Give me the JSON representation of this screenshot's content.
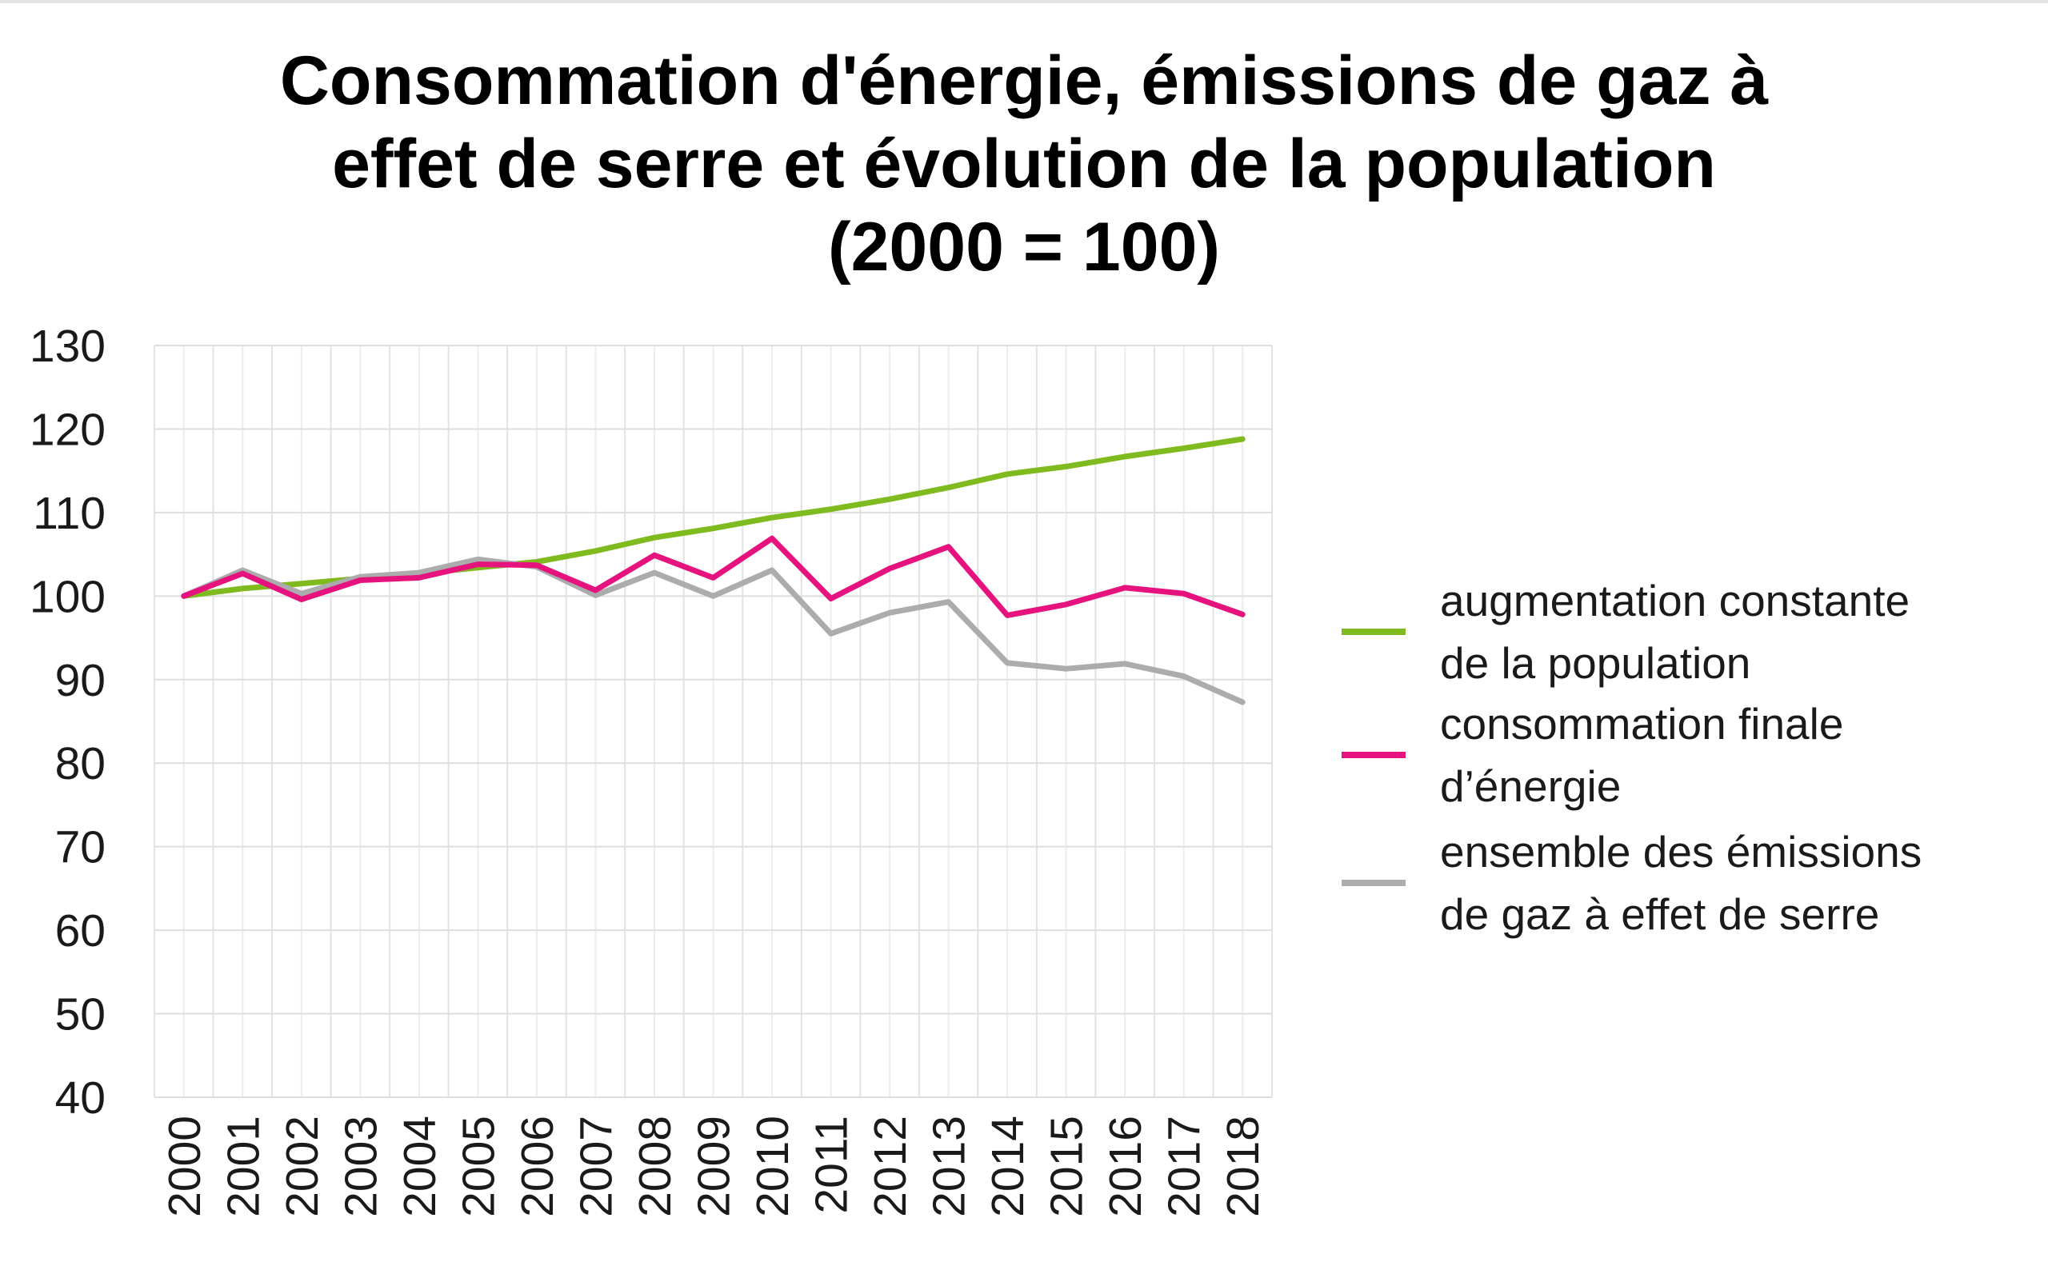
{
  "chart_data": {
    "type": "line",
    "title": [
      "Consommation d'énergie, émissions de gaz à",
      "effet de serre et évolution de la population",
      "(2000 = 100)"
    ],
    "xlabel": "",
    "ylabel": "",
    "ylim": [
      40,
      130
    ],
    "yticks": [
      "130",
      "120",
      "110",
      "100",
      "90",
      "80",
      "70",
      "60",
      "50",
      "40"
    ],
    "categories": [
      "2000",
      "2001",
      "2002",
      "2003",
      "2004",
      "2005",
      "2006",
      "2007",
      "2008",
      "2009",
      "2010",
      "2011",
      "2012",
      "2013",
      "2014",
      "2015",
      "2016",
      "2017",
      "2018"
    ],
    "grid": true,
    "legend_position": "right",
    "series": [
      {
        "name": "augmentation constante de la population",
        "legend_lines": [
          "augmentation constante",
          "de la population"
        ],
        "color": "#7fba1f",
        "values": [
          100,
          100.9,
          101.5,
          102.1,
          102.7,
          103.4,
          104.1,
          105.4,
          107.0,
          108.1,
          109.4,
          110.4,
          111.6,
          113.0,
          114.6,
          115.5,
          116.7,
          117.7,
          118.8
        ]
      },
      {
        "name": "consommation finale d’énergie",
        "legend_lines": [
          "consommation finale",
          "d’énergie"
        ],
        "color": "#e6137f",
        "values": [
          100,
          102.7,
          99.6,
          101.9,
          102.2,
          103.8,
          103.7,
          100.7,
          104.9,
          102.2,
          106.9,
          99.7,
          103.3,
          105.9,
          97.7,
          99.0,
          101.0,
          100.3,
          97.8
        ]
      },
      {
        "name": "ensemble des émissions de gaz à effet de serre",
        "legend_lines": [
          "ensemble des émissions",
          "de gaz à effet de serre"
        ],
        "color": "#acacac",
        "values": [
          100,
          103.1,
          100.3,
          102.3,
          102.8,
          104.4,
          103.5,
          100.1,
          102.8,
          100.0,
          103.1,
          95.5,
          98.0,
          99.3,
          92.0,
          91.3,
          91.9,
          90.4,
          87.3
        ]
      }
    ]
  }
}
